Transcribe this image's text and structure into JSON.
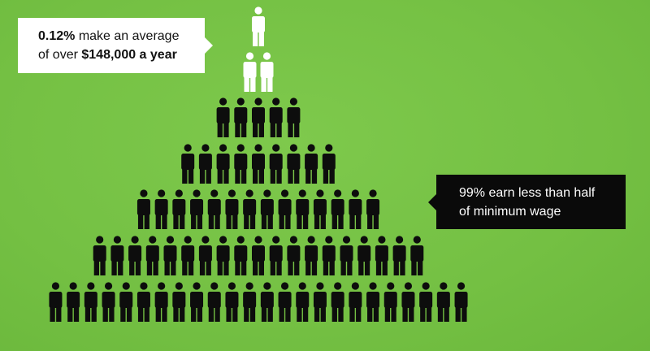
{
  "top_callout": {
    "line_1": {
      "bold": "0.12%",
      "text": "make an average"
    },
    "line_2": {
      "text": "of over",
      "bold": "$148,000 a year"
    }
  },
  "side_callout": {
    "line_1": "99% earn less than half",
    "line_2": "of minimum wage"
  }
}
